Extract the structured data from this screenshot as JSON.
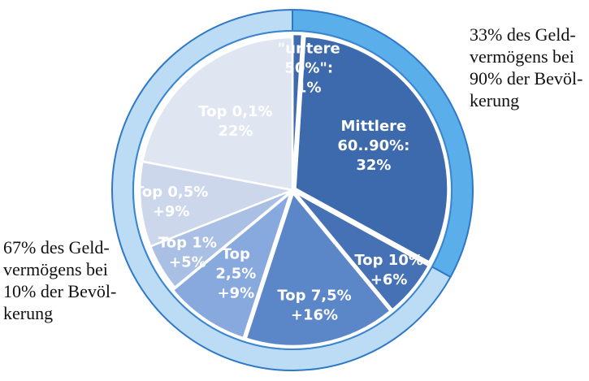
{
  "chart_data": {
    "type": "pie",
    "slices": [
      {
        "label_lines": [
          "\"untere",
          "50%\":",
          "1%"
        ],
        "value": 1,
        "color": "#3f6aad"
      },
      {
        "label_lines": [
          "Mittlere",
          "60..90%:",
          "32%"
        ],
        "value": 32,
        "color": "#3d69ad"
      },
      {
        "label_lines": [
          "Top 10%",
          "+6%"
        ],
        "value": 6,
        "color": "#4671b5"
      },
      {
        "label_lines": [
          "Top 7,5%",
          "+16%"
        ],
        "value": 16,
        "color": "#5b86c8"
      },
      {
        "label_lines": [
          "Top",
          "2,5%",
          "+9%"
        ],
        "value": 9,
        "color": "#87a9dd"
      },
      {
        "label_lines": [
          "Top 1%",
          "+5%"
        ],
        "value": 5,
        "color": "#a9bfe4"
      },
      {
        "label_lines": [
          "Top 0,5%",
          "+9%"
        ],
        "value": 9,
        "color": "#cdd7ec"
      },
      {
        "label_lines": [
          "Top 0,1%",
          "22%"
        ],
        "value": 22,
        "color": "#dfe5f1"
      }
    ],
    "outer_ring": [
      {
        "share": 33,
        "color": "#5aaeea"
      },
      {
        "share": 67,
        "color": "#bcdcf5"
      }
    ]
  },
  "annotations": {
    "right": "33% des Geld-\nvermögens bei\n90% der Bevöl-\nkerung",
    "left": "67% des Geld-\nvermögens bei\n10% der Bevöl-\nkerung"
  }
}
